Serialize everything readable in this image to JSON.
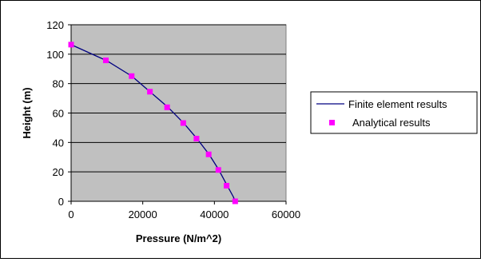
{
  "chart_data": {
    "type": "scatter",
    "xlabel": "Pressure (N/m^2)",
    "ylabel": "Height (m)",
    "xlim": [
      0,
      60000
    ],
    "ylim": [
      0,
      120
    ],
    "x_ticks": [
      "0",
      "20000",
      "40000",
      "60000"
    ],
    "y_ticks": [
      "0",
      "20",
      "40",
      "60",
      "80",
      "100",
      "120"
    ],
    "grid": "horizontal",
    "legend_position": "right",
    "plot_background": "#c0c0c0",
    "series": [
      {
        "name": "Finite element results",
        "kind": "line",
        "color": "#000080",
        "x": [
          0,
          5000,
          10000,
          17000,
          22000,
          27000,
          31500,
          35000,
          38500,
          41200,
          43500,
          45300,
          45800
        ],
        "y": [
          106.5,
          101,
          95.5,
          85,
          74.5,
          64,
          53,
          43,
          32,
          21.5,
          11,
          3,
          0
        ]
      },
      {
        "name": "Analytical results",
        "kind": "marker",
        "color": "#ff00ff",
        "x": [
          0,
          9700,
          16900,
          22000,
          26800,
          31300,
          35000,
          38400,
          41100,
          43400,
          45800
        ],
        "y": [
          106.5,
          95.8,
          85.1,
          74.5,
          63.9,
          53.2,
          42.6,
          31.9,
          21.3,
          10.6,
          0
        ]
      }
    ]
  }
}
